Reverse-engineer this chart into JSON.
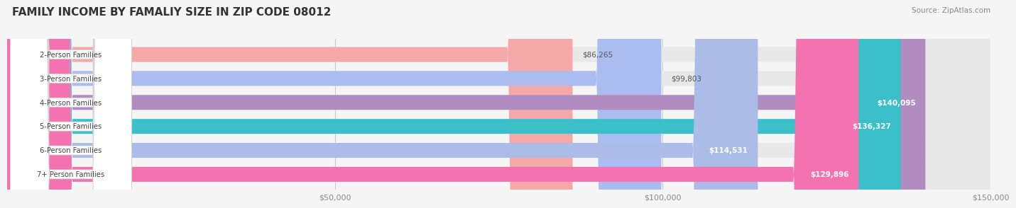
{
  "title": "FAMILY INCOME BY FAMALIY SIZE IN ZIP CODE 08012",
  "source": "Source: ZipAtlas.com",
  "categories": [
    "2-Person Families",
    "3-Person Families",
    "4-Person Families",
    "5-Person Families",
    "6-Person Families",
    "7+ Person Families"
  ],
  "values": [
    86265,
    99803,
    140095,
    136327,
    114531,
    129896
  ],
  "bar_colors": [
    "#F4A9A8",
    "#AABCF0",
    "#B08CC0",
    "#3BBFC8",
    "#ABBCE8",
    "#F472B0"
  ],
  "bg_color": "#f5f5f5",
  "bar_bg_color": "#e8e8e8",
  "xlim": [
    0,
    150000
  ],
  "xticks": [
    50000,
    100000,
    150000
  ],
  "xtick_labels": [
    "$50,000",
    "$100,000",
    "$150,000"
  ],
  "value_labels": [
    "$86,265",
    "$99,803",
    "$140,095",
    "$136,327",
    "$114,531",
    "$129,896"
  ],
  "value_inside": [
    false,
    false,
    true,
    true,
    true,
    true
  ],
  "title_fontsize": 11,
  "bar_height": 0.62,
  "figsize": [
    14.06,
    3.05
  ]
}
